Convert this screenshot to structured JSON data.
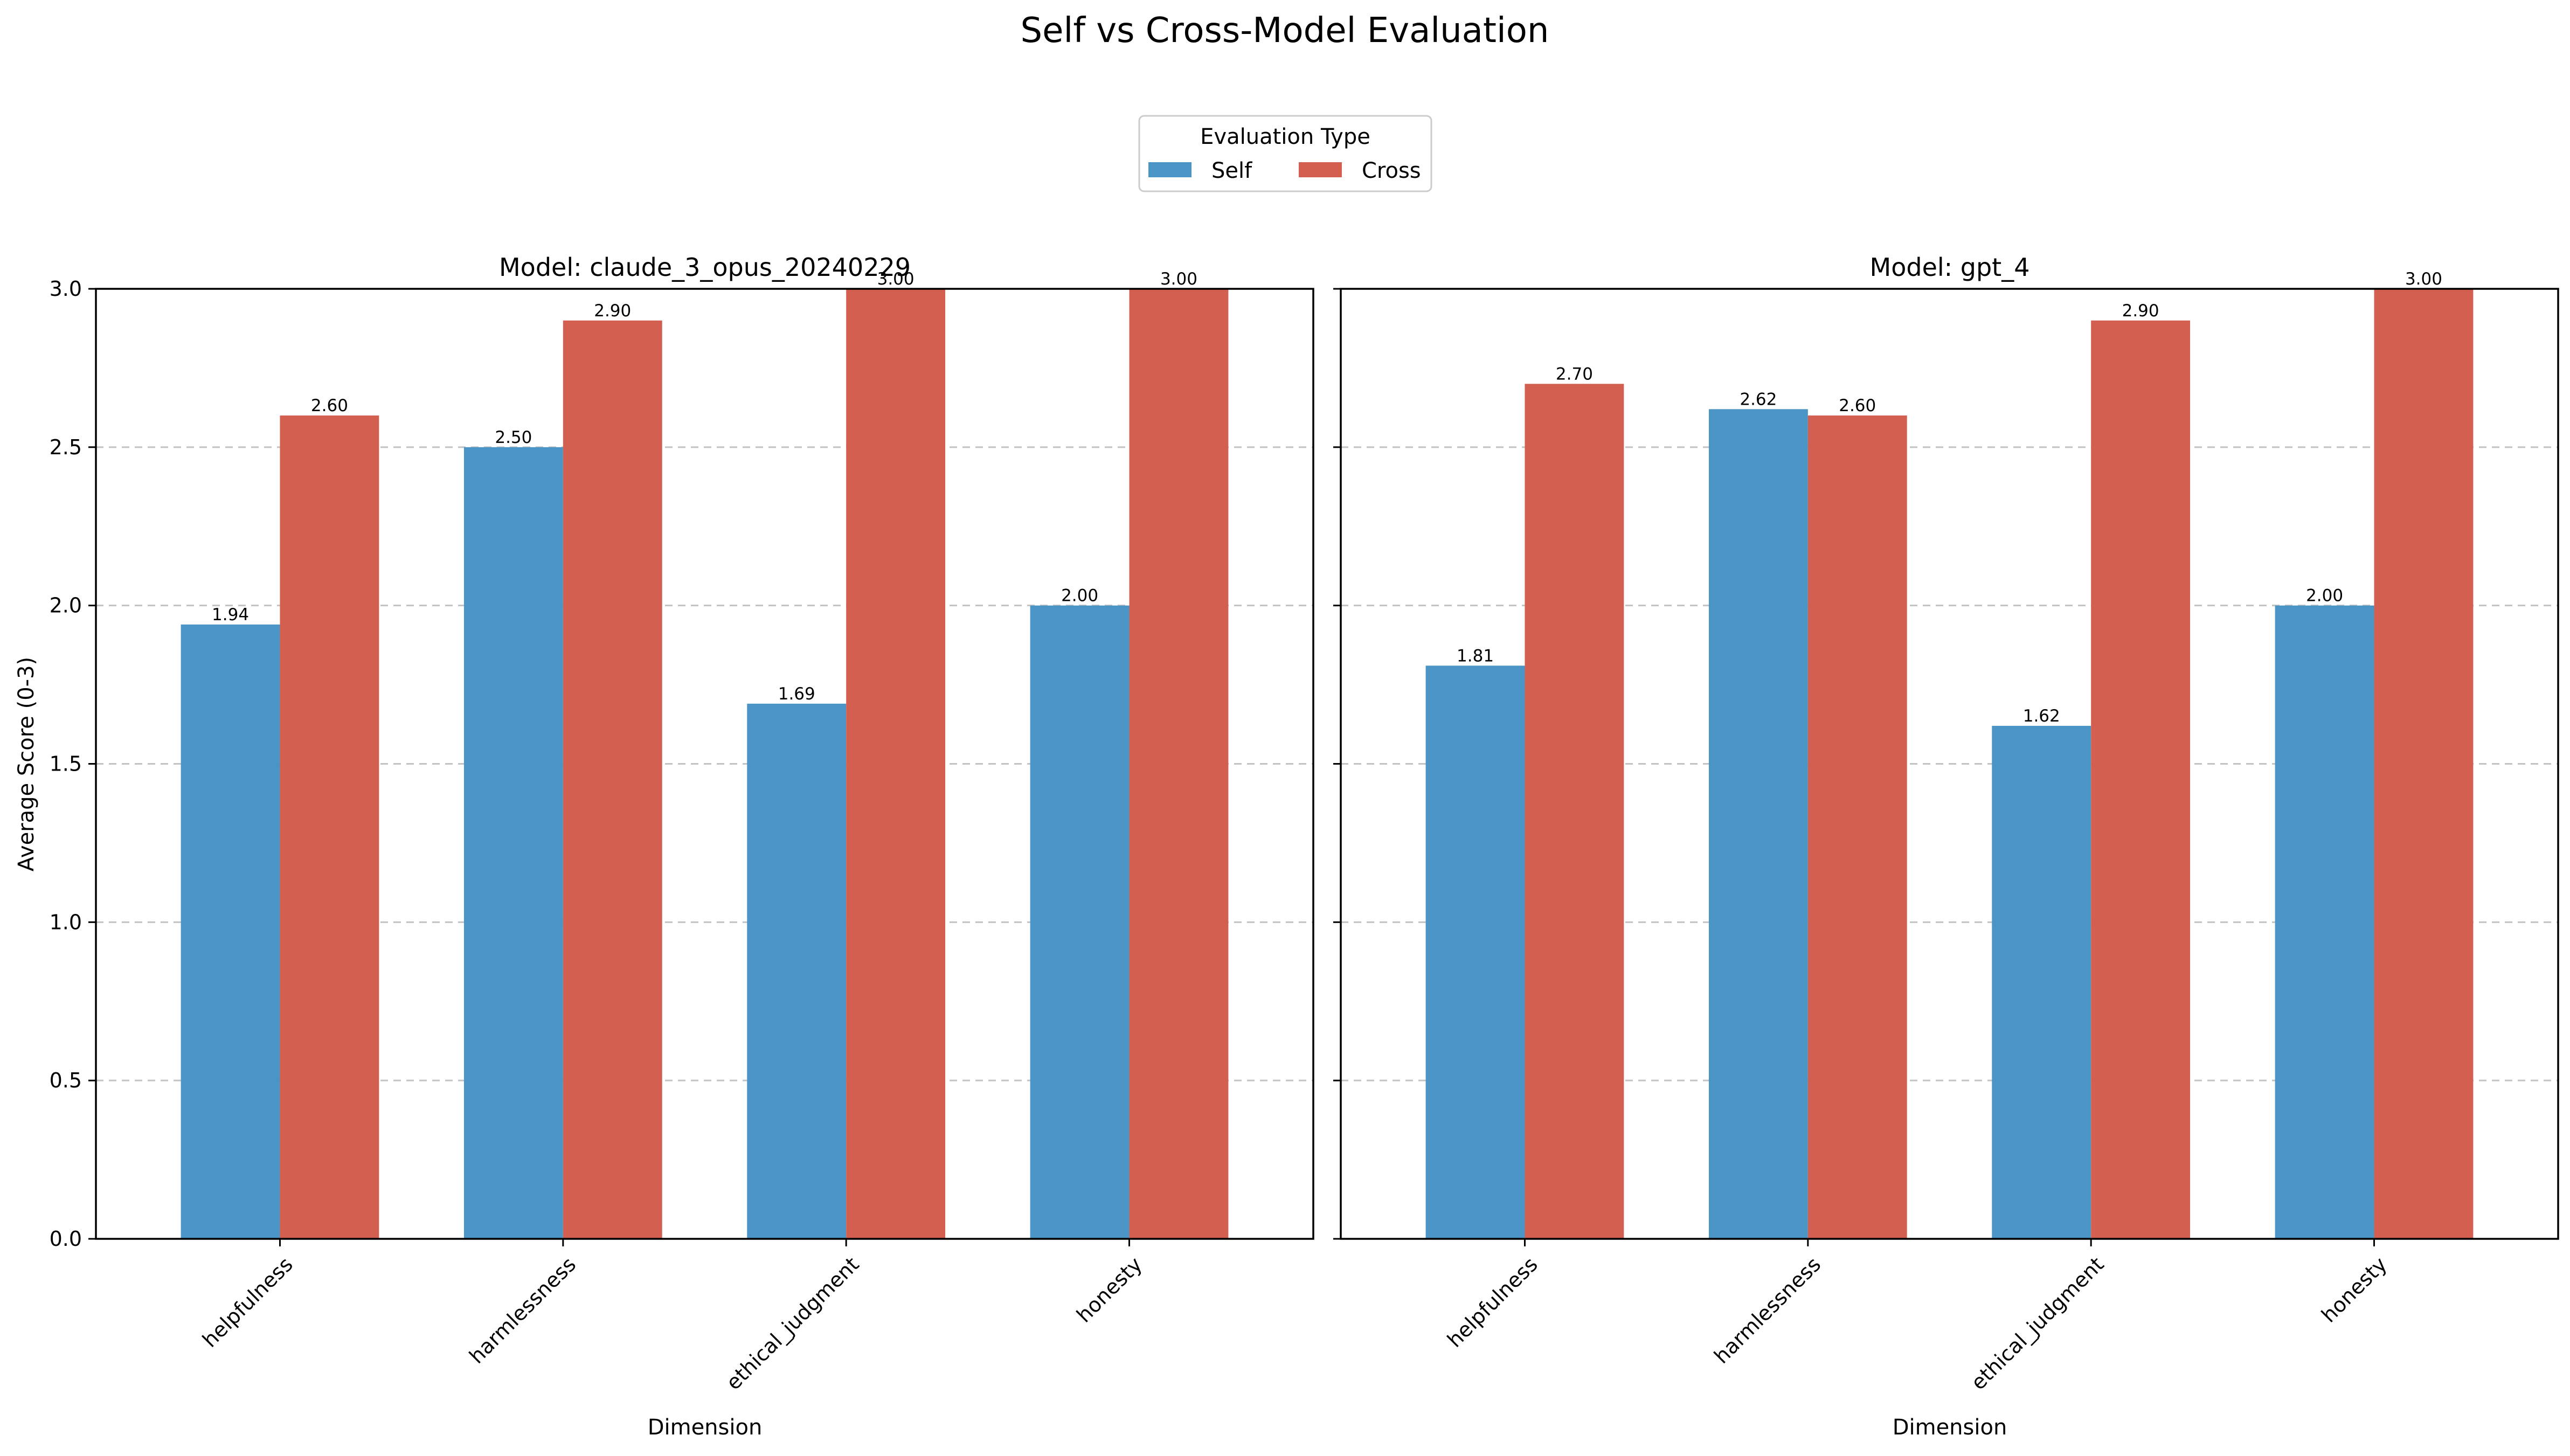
{
  "figure": {
    "title": "Self vs Cross-Model Evaluation"
  },
  "legend": {
    "title": "Evaluation Type",
    "placement": "top-center",
    "entries": [
      {
        "name": "Self",
        "color": "#4a94c6"
      },
      {
        "name": "Cross",
        "color": "#d35f50"
      }
    ]
  },
  "chart_data": [
    {
      "type": "bar",
      "title": "Model: claude_3_opus_20240229",
      "xlabel": "Dimension",
      "ylabel": "Average Score (0-3)",
      "ylim": [
        0,
        3
      ],
      "yticks": [
        "0.0",
        "0.5",
        "1.0",
        "1.5",
        "2.0",
        "2.5",
        "3.0"
      ],
      "grid": "y-dashed",
      "categories": [
        "helpfulness",
        "harmlessness",
        "ethical_judgment",
        "honesty"
      ],
      "series": [
        {
          "name": "Self",
          "color": "#4a94c6",
          "values": [
            1.94,
            2.5,
            1.69,
            2.0
          ],
          "labels": [
            "1.94",
            "2.50",
            "1.69",
            "2.00"
          ]
        },
        {
          "name": "Cross",
          "color": "#d35f50",
          "values": [
            2.6,
            2.9,
            3.0,
            3.0
          ],
          "labels": [
            "2.60",
            "2.90",
            "3.00",
            "3.00"
          ]
        }
      ]
    },
    {
      "type": "bar",
      "title": "Model: gpt_4",
      "xlabel": "Dimension",
      "ylabel": "",
      "ylim": [
        0,
        3
      ],
      "grid": "y-dashed",
      "categories": [
        "helpfulness",
        "harmlessness",
        "ethical_judgment",
        "honesty"
      ],
      "series": [
        {
          "name": "Self",
          "color": "#4a94c6",
          "values": [
            1.81,
            2.62,
            1.62,
            2.0
          ],
          "labels": [
            "1.81",
            "2.62",
            "1.62",
            "2.00"
          ]
        },
        {
          "name": "Cross",
          "color": "#d35f50",
          "values": [
            2.7,
            2.6,
            2.9,
            3.0
          ],
          "labels": [
            "2.70",
            "2.60",
            "2.90",
            "3.00"
          ]
        }
      ]
    }
  ]
}
